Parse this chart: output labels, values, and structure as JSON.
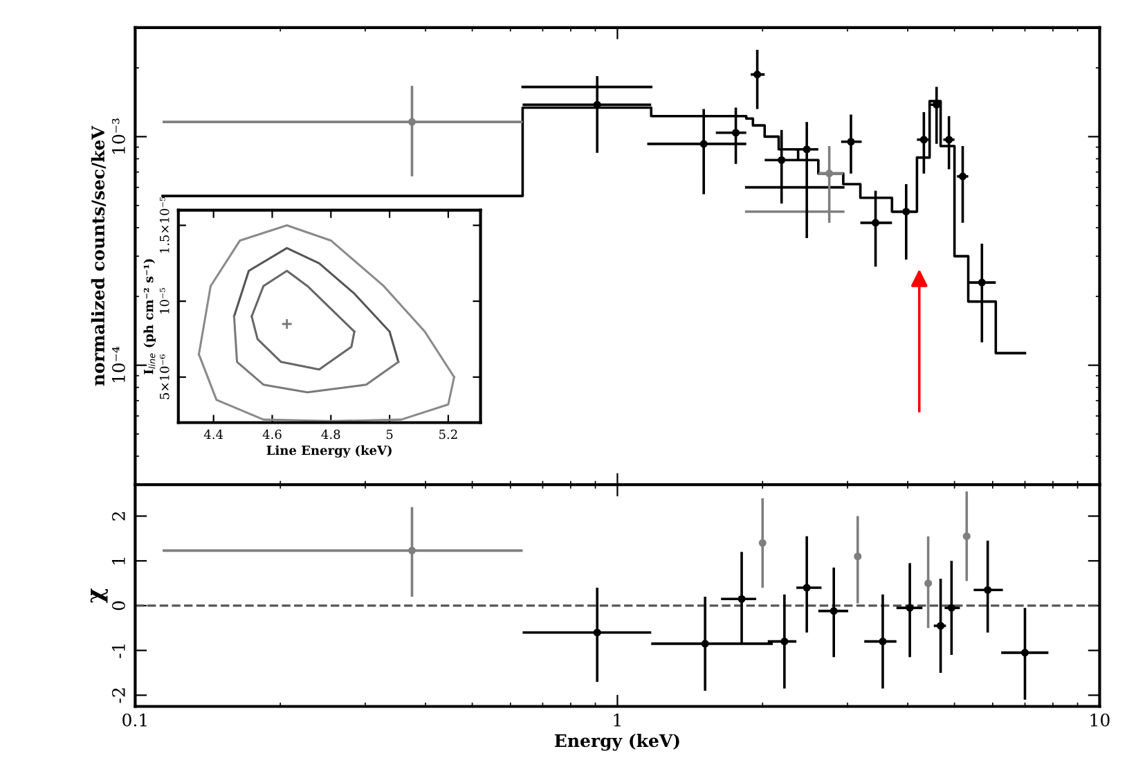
{
  "chart_data": [
    {
      "type": "scatter",
      "log": "xy",
      "ylabel": "normalized counts/sec/keV",
      "xlim": [
        0.1,
        10
      ],
      "ylim": [
        3e-05,
        0.003
      ],
      "xticks": [
        0.1,
        1,
        10
      ],
      "yticks": [
        {
          "value": 0.001,
          "label": "10⁻³"
        },
        {
          "value": 0.0001,
          "label": "10⁻⁴"
        }
      ],
      "tick_labels": "y",
      "series": [
        {
          "marker": "circle",
          "x": [
            0.375,
            0.908,
            1.51,
            1.76,
            1.95,
            2.19,
            2.47,
            2.75,
            3.05,
            3.43,
            3.97,
            4.32,
            4.59,
            4.87,
            5.2,
            5.7
          ],
          "values": [
            0.00116,
            0.00138,
            0.00093,
            0.00104,
            0.00187,
            0.00079,
            0.00088,
            0.00069,
            0.00095,
            0.00042,
            0.00047,
            0.00097,
            0.00138,
            0.00097,
            0.00067,
            0.00023
          ],
          "xerrors": [
            [
              0.114,
              0.636
            ],
            [
              0.636,
              1.175
            ],
            [
              1.153,
              1.85
            ],
            [
              1.6,
              1.85
            ],
            [
              1.89,
              2.02
            ],
            [
              2.02,
              2.37
            ],
            [
              2.34,
              2.61
            ],
            [
              2.61,
              2.94
            ],
            [
              2.91,
              3.21
            ],
            [
              3.19,
              3.71
            ],
            [
              3.71,
              4.18
            ],
            [
              4.18,
              4.44
            ],
            [
              4.44,
              4.68
            ],
            [
              4.74,
              5.0
            ],
            [
              5.06,
              5.34
            ],
            [
              5.34,
              6.09
            ]
          ],
          "errors": [
            [
              0.00067,
              0.00167
            ],
            [
              0.00085,
              0.00184
            ],
            [
              0.00056,
              0.00132
            ],
            [
              0.00076,
              0.00134
            ],
            [
              0.00132,
              0.0024
            ],
            [
              0.00051,
              0.00107
            ],
            [
              0.00036,
              0.00116
            ],
            [
              0.00042,
              0.00091
            ],
            [
              0.00069,
              0.00125
            ],
            [
              0.00027,
              0.00058
            ],
            [
              0.00029,
              0.00062
            ],
            [
              0.00069,
              0.00128
            ],
            [
              0.00093,
              0.00165
            ],
            [
              0.00072,
              0.00123
            ],
            [
              0.00042,
              0.00091
            ],
            [
              0.000126,
              0.00034
            ]
          ],
          "colors": [
            "#7f7f7f",
            "#000000",
            "#000000",
            "#000000",
            "#000000",
            "#000000",
            "#000000",
            "#7f7f7f",
            "#000000",
            "#000000",
            "#000000",
            "#000000",
            "#000000",
            "#000000",
            "#000000",
            "#000000"
          ]
        },
        {
          "type": "step",
          "color": "#000000",
          "x": [
            0.114,
            0.636,
            1.175,
            1.85,
            1.91,
            2.02,
            2.16,
            2.37,
            2.61,
            2.94,
            3.19,
            3.71,
            4.18,
            4.44,
            4.68,
            5.0,
            5.34,
            6.09,
            7.0
          ],
          "values": [
            0.00055,
            0.00134,
            0.00123,
            0.0012,
            0.00112,
            0.001,
            0.00088,
            0.00079,
            0.00069,
            0.00062,
            0.00054,
            0.00047,
            0.00081,
            0.00143,
            0.00091,
            0.0003,
            0.00019,
            0.000113,
            0.000113
          ]
        },
        {
          "type": "step",
          "color": "#000000",
          "x": [
            0.636,
            1.175
          ],
          "values": [
            0.00165,
            0.00165
          ]
        },
        {
          "type": "step",
          "color": "#000000",
          "x": [
            1.85,
            2.94
          ],
          "values": [
            0.0006,
            0.0006
          ]
        },
        {
          "type": "step",
          "color": "#7f7f7f",
          "x": [
            1.85,
            2.94
          ],
          "values": [
            0.00047,
            0.00047
          ]
        }
      ]
    },
    {
      "type": "scatter",
      "log": "x",
      "xlabel": "Energy (keV)",
      "ylabel": "χ",
      "xlim": [
        0.1,
        10
      ],
      "ylim": [
        -2.25,
        2.7
      ],
      "xticks": [
        0.1,
        1,
        10
      ],
      "yticks": [
        -2,
        -1,
        0,
        1,
        2
      ],
      "ref_lines": [
        {
          "axis": "y",
          "value": 0,
          "line_style": "dashed",
          "color": "#555555"
        }
      ],
      "series": [
        {
          "marker": "circle",
          "x": [
            0.375,
            0.908,
            1.52,
            1.81,
            2.0,
            2.22,
            2.47,
            2.81,
            3.15,
            3.55,
            4.04,
            4.41,
            4.68,
            4.93,
            5.3,
            5.86,
            7.0
          ],
          "values": [
            1.23,
            -0.6,
            -0.85,
            0.15,
            1.4,
            -0.8,
            0.4,
            -0.12,
            1.1,
            -0.8,
            -0.05,
            0.5,
            -0.45,
            -0.05,
            1.55,
            0.35,
            -1.05
          ],
          "errors": [
            [
              0.2,
              2.2
            ],
            [
              -1.7,
              0.4
            ],
            [
              -1.9,
              0.2
            ],
            [
              -0.85,
              1.2
            ],
            [
              0.4,
              2.4
            ],
            [
              -1.85,
              0.25
            ],
            [
              -0.6,
              1.55
            ],
            [
              -1.15,
              0.85
            ],
            [
              0.05,
              2.0
            ],
            [
              -1.85,
              0.25
            ],
            [
              -1.15,
              0.95
            ],
            [
              -0.5,
              1.55
            ],
            [
              -1.5,
              0.6
            ],
            [
              -1.1,
              1.0
            ],
            [
              0.55,
              2.55
            ],
            [
              -0.6,
              1.45
            ],
            [
              -2.1,
              -0.05
            ]
          ],
          "xerrors": [
            [
              0.114,
              0.636
            ],
            [
              0.636,
              1.175
            ],
            [
              1.175,
              2.1
            ],
            [
              1.64,
              1.94
            ],
            null,
            [
              2.05,
              2.35
            ],
            [
              2.35,
              2.65
            ],
            [
              2.61,
              3.01
            ],
            null,
            [
              3.25,
              3.79
            ],
            [
              3.79,
              4.29
            ],
            null,
            [
              4.53,
              4.8
            ],
            [
              4.77,
              5.13
            ],
            null,
            [
              5.48,
              6.3
            ],
            [
              6.25,
              7.83
            ]
          ],
          "colors": [
            "#7f7f7f",
            "#000000",
            "#000000",
            "#000000",
            "#7f7f7f",
            "#000000",
            "#000000",
            "#000000",
            "#7f7f7f",
            "#000000",
            "#000000",
            "#7f7f7f",
            "#000000",
            "#000000",
            "#7f7f7f",
            "#000000",
            "#000000"
          ]
        }
      ]
    },
    {
      "type": "line",
      "xlabel": "Line Energy (keV)",
      "ylabel": "I$_{line}$ (ph cm⁻² s⁻¹)",
      "xlim": [
        4.28,
        5.31
      ],
      "ylim": [
        2e-06,
        1.6e-05
      ],
      "xticks": [
        4.4,
        4.6,
        4.8,
        5,
        5.2
      ],
      "yticks": [
        {
          "value": 5e-06,
          "label": "5×10⁻⁶"
        },
        {
          "value": 1e-05,
          "label": "10⁻⁵"
        },
        {
          "value": 1.5e-05,
          "label": "1.5×10⁻⁵"
        }
      ],
      "series": [
        {
          "color": "#8a8a8a",
          "x": [
            4.35,
            4.39,
            4.49,
            4.65,
            4.8,
            4.98,
            5.12,
            5.22
          ],
          "values": [
            6.5e-06,
            1.1e-05,
            1.4e-05,
            1.5e-05,
            1.4e-05,
            1.1e-05,
            8e-06,
            5e-06
          ]
        },
        {
          "color": "#8a8a8a",
          "x": [
            4.35,
            4.41,
            4.57,
            4.8,
            5.04,
            5.2,
            5.22
          ],
          "values": [
            6.5e-06,
            3.5e-06,
            2.2e-06,
            2.1e-06,
            2.2e-06,
            3.2e-06,
            5e-06
          ]
        },
        {
          "color": "#555555",
          "x": [
            4.47,
            4.52,
            4.65,
            4.76,
            4.88,
            5.0,
            5.03
          ],
          "values": [
            9e-06,
            1.2e-05,
            1.35e-05,
            1.25e-05,
            1.05e-05,
            8e-06,
            6e-06
          ]
        },
        {
          "color": "#7a7a7a",
          "x": [
            4.47,
            4.48,
            4.57,
            4.72,
            4.92,
            5.03
          ],
          "values": [
            9e-06,
            6e-06,
            4.5e-06,
            4e-06,
            4.5e-06,
            6e-06
          ]
        },
        {
          "color": "#666666",
          "x": [
            4.53,
            4.57,
            4.65,
            4.72,
            4.8,
            4.88
          ],
          "values": [
            9e-06,
            1.1e-05,
            1.2e-05,
            1.1e-05,
            9.5e-06,
            8e-06
          ]
        },
        {
          "color": "#666666",
          "x": [
            4.53,
            4.55,
            4.63,
            4.76,
            4.87,
            4.88
          ],
          "values": [
            9e-06,
            7.5e-06,
            6e-06,
            5.5e-06,
            7e-06,
            8e-06
          ]
        },
        {
          "type": "scatter",
          "marker": "cross",
          "color": "#777777",
          "x": [
            4.65
          ],
          "values": [
            8.5e-06
          ]
        }
      ]
    }
  ]
}
